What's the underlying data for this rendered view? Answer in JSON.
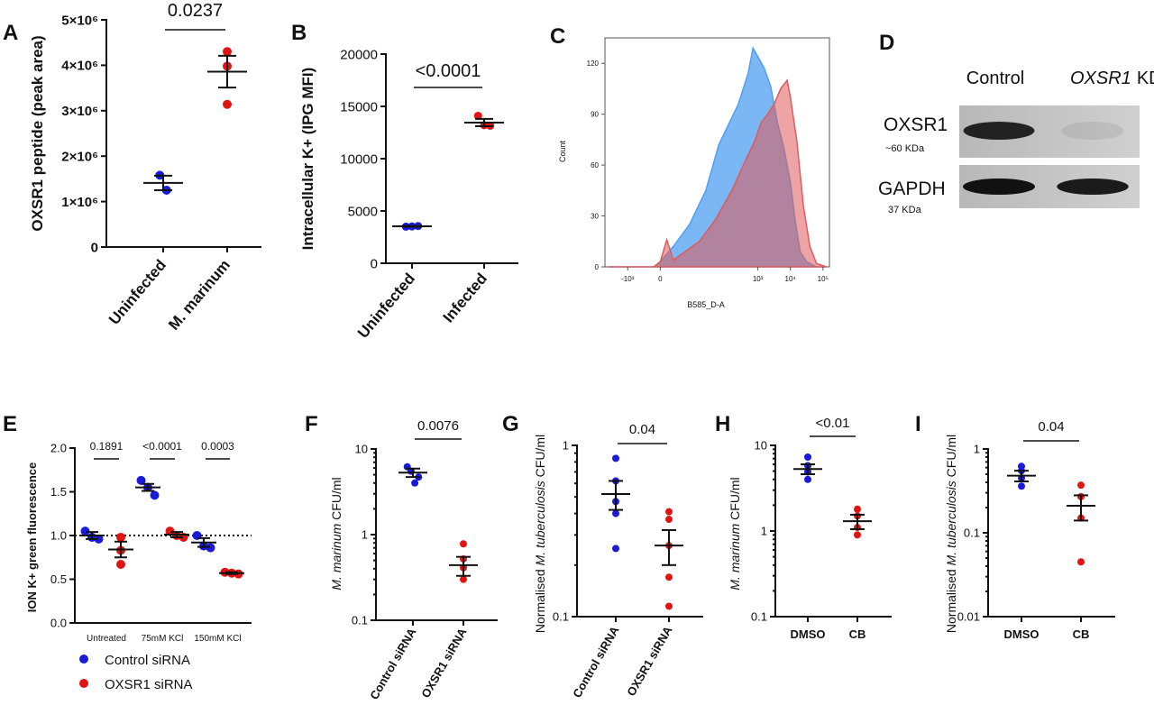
{
  "colors": {
    "control": "#1a1adb",
    "treated": "#e11414",
    "flow_blue": "#4f9ff0",
    "flow_red": "#e05a5a"
  },
  "chart_data": [
    {
      "panel": "A",
      "type": "scatter",
      "ylabel": "OXSR1 peptide (peak area)",
      "categories": [
        "Uninfected",
        "M. marinum"
      ],
      "yticks": [
        "0",
        "1×10⁶",
        "2×10⁶",
        "3×10⁶",
        "4×10⁶",
        "5×10⁶"
      ],
      "ylim": [
        0,
        5000000
      ],
      "groups": [
        {
          "category": "Uninfected",
          "color": "control",
          "points": [
            1580000,
            1250000
          ],
          "mean": 1410000,
          "sem": 160000
        },
        {
          "category": "M. marinum",
          "color": "treated",
          "points": [
            4300000,
            3980000,
            3140000
          ],
          "mean": 3860000,
          "sem": 350000
        }
      ],
      "annotations": [
        {
          "text": "0.0237",
          "from": 0,
          "to": 1
        }
      ]
    },
    {
      "panel": "B",
      "type": "scatter",
      "ylabel": "Intracellular K+ (IPG MFI)",
      "categories": [
        "Uninfected",
        "Infected"
      ],
      "yticks": [
        "0",
        "5000",
        "10000",
        "15000",
        "20000"
      ],
      "ylim": [
        0,
        20000
      ],
      "groups": [
        {
          "category": "Uninfected",
          "color": "control",
          "points": [
            3500,
            3520,
            3560
          ],
          "mean": 3530,
          "sem": 40
        },
        {
          "category": "Infected",
          "color": "treated",
          "points": [
            14100,
            13200,
            13150
          ],
          "mean": 13450,
          "sem": 350
        }
      ],
      "annotations": [
        {
          "text": "<0.0001",
          "from": 0,
          "to": 1
        }
      ]
    },
    {
      "panel": "C",
      "type": "area",
      "ylabel": "Count",
      "xlabel": "B585_D-A",
      "yticks": [
        "0",
        "30",
        "60",
        "90",
        "120"
      ],
      "ylim": [
        0,
        135
      ],
      "xticks": [
        "-10³",
        "0",
        "10³",
        "10⁴",
        "10⁵"
      ],
      "xlim": [
        -1.7,
        5.2
      ],
      "series": [
        {
          "color": "flow_blue",
          "x": [
            -1.6,
            -0.2,
            0.0,
            0.4,
            0.9,
            1.4,
            1.8,
            2.4,
            2.7,
            2.85,
            3.0,
            3.2,
            3.4,
            3.6,
            3.8,
            4.0,
            4.15,
            4.3,
            4.5,
            4.8,
            5.1
          ],
          "y": [
            0,
            0,
            3,
            12,
            25,
            45,
            72,
            96,
            114,
            129,
            124,
            117,
            106,
            85,
            70,
            50,
            27,
            9,
            3,
            0,
            0
          ]
        },
        {
          "color": "flow_red",
          "x": [
            -1.6,
            -0.2,
            0.0,
            0.2,
            0.4,
            0.7,
            1.2,
            1.7,
            2.2,
            2.6,
            2.9,
            3.1,
            3.3,
            3.5,
            3.7,
            3.9,
            4.0,
            4.2,
            4.4,
            4.6,
            4.8,
            5.1
          ],
          "y": [
            0,
            0,
            3,
            16,
            4,
            8,
            15,
            28,
            45,
            62,
            74,
            85,
            90,
            96,
            105,
            110,
            100,
            74,
            36,
            12,
            2,
            0
          ]
        }
      ]
    },
    {
      "panel": "E",
      "type": "scatter",
      "ylabel": "ION K+ green fluorescence",
      "categories": [
        "Untreated",
        "75mM KCl",
        "150mM KCl"
      ],
      "yticks": [
        "0.0",
        "0.5",
        "1.0",
        "1.5",
        "2.0"
      ],
      "ylim": [
        0,
        2.0
      ],
      "reference_line": 1.0,
      "groups": [
        {
          "category": "Untreated",
          "color": "control",
          "points": [
            1.05,
            0.98,
            0.96
          ],
          "mean": 1.0,
          "sem": 0.04
        },
        {
          "category": "Untreated",
          "color": "treated",
          "points": [
            0.98,
            0.83,
            0.67
          ],
          "mean": 0.84,
          "sem": 0.09
        },
        {
          "category": "75mM KCl",
          "color": "control",
          "points": [
            1.63,
            1.55,
            1.46
          ],
          "mean": 1.55,
          "sem": 0.04
        },
        {
          "category": "75mM KCl",
          "color": "treated",
          "points": [
            1.05,
            1.0,
            0.98
          ],
          "mean": 1.01,
          "sem": 0.03
        },
        {
          "category": "150mM KCl",
          "color": "control",
          "points": [
            1.0,
            0.88,
            0.86
          ],
          "mean": 0.92,
          "sem": 0.05
        },
        {
          "category": "150mM KCl",
          "color": "treated",
          "points": [
            0.58,
            0.57,
            0.56
          ],
          "mean": 0.57,
          "sem": 0.01
        }
      ],
      "annotations": [
        {
          "text": "0.1891",
          "group": 0
        },
        {
          "text": "<0.0001",
          "group": 1
        },
        {
          "text": "0.0003",
          "group": 2
        }
      ],
      "legend": [
        {
          "label": "Control siRNA",
          "color": "control"
        },
        {
          "label": "OXSR1 siRNA",
          "color": "treated"
        }
      ]
    },
    {
      "panel": "F",
      "type": "scatter",
      "log": true,
      "ylabel_italic": "M. marinum",
      "ylabel_rest": " CFU/ml",
      "categories": [
        "Control siRNA",
        "OXSR1 siRNA"
      ],
      "yticks": [
        "0.1",
        "1",
        "10"
      ],
      "ylim": [
        0.1,
        10
      ],
      "groups": [
        {
          "category": "Control siRNA",
          "color": "control",
          "points": [
            6.2,
            5.5,
            4.0,
            4.7
          ],
          "mean": 5.3,
          "sem": 0.6
        },
        {
          "category": "OXSR1 siRNA",
          "color": "treated",
          "points": [
            0.78,
            0.52,
            0.41,
            0.3
          ],
          "mean": 0.44,
          "sem": 0.11
        }
      ],
      "annotations": [
        {
          "text": "0.0076",
          "from": 0,
          "to": 1
        }
      ]
    },
    {
      "panel": "G",
      "type": "scatter",
      "log": true,
      "ylabel_pre": "Normalised ",
      "ylabel_italic": "M. tuberculosis",
      "ylabel_rest": " CFU/ml",
      "categories": [
        "Control siRNA",
        "OXSR1 siRNA"
      ],
      "yticks": [
        "0.1",
        "1"
      ],
      "ylim": [
        0.1,
        1
      ],
      "groups": [
        {
          "category": "Control siRNA",
          "color": "control",
          "points": [
            0.84,
            0.62,
            0.47,
            0.4,
            0.25
          ],
          "mean": 0.52,
          "sem": 0.1
        },
        {
          "category": "OXSR1 siRNA",
          "color": "treated",
          "points": [
            0.41,
            0.37,
            0.26,
            0.17,
            0.115
          ],
          "mean": 0.26,
          "sem": 0.06
        }
      ],
      "annotations": [
        {
          "text": "0.04",
          "from": 0,
          "to": 1
        }
      ]
    },
    {
      "panel": "H",
      "type": "scatter",
      "log": true,
      "ylabel_italic": "M. marinum",
      "ylabel_rest": " CFU/ml",
      "categories": [
        "DMSO",
        "CB"
      ],
      "yticks": [
        "0.1",
        "1",
        "10"
      ],
      "ylim": [
        0.1,
        10
      ],
      "groups": [
        {
          "category": "DMSO",
          "color": "control",
          "points": [
            7.3,
            5.8,
            4.9,
            4.0
          ],
          "mean": 5.3,
          "sem": 0.7
        },
        {
          "category": "CB",
          "color": "treated",
          "points": [
            1.8,
            1.5,
            1.1,
            0.9
          ],
          "mean": 1.3,
          "sem": 0.25
        }
      ],
      "annotations": [
        {
          "text": "<0.01",
          "from": 0,
          "to": 1
        }
      ]
    },
    {
      "panel": "I",
      "type": "scatter",
      "log": true,
      "ylabel_pre": "Normalised ",
      "ylabel_italic": "M. tuberculosis",
      "ylabel_rest": " CFU/ml",
      "categories": [
        "DMSO",
        "CB"
      ],
      "yticks": [
        "0.01",
        "0.1",
        "1"
      ],
      "ylim": [
        0.01,
        1
      ],
      "groups": [
        {
          "category": "DMSO",
          "color": "control",
          "points": [
            0.62,
            0.55,
            0.45,
            0.36
          ],
          "mean": 0.48,
          "sem": 0.07
        },
        {
          "category": "CB",
          "color": "treated",
          "points": [
            0.37,
            0.27,
            0.15,
            0.045
          ],
          "mean": 0.21,
          "sem": 0.07
        }
      ],
      "annotations": [
        {
          "text": "0.04",
          "from": 0,
          "to": 1
        }
      ]
    }
  ],
  "blot": {
    "panel": "D",
    "lanes": [
      "Control",
      "KD"
    ],
    "lane_gene": "OXSR1",
    "bands": [
      {
        "label": "OXSR1",
        "size": "~60 KDa",
        "intensity": [
          0.9,
          0.08
        ]
      },
      {
        "label": "GAPDH",
        "size": "37 KDa",
        "intensity": [
          1.0,
          0.95
        ]
      }
    ]
  }
}
